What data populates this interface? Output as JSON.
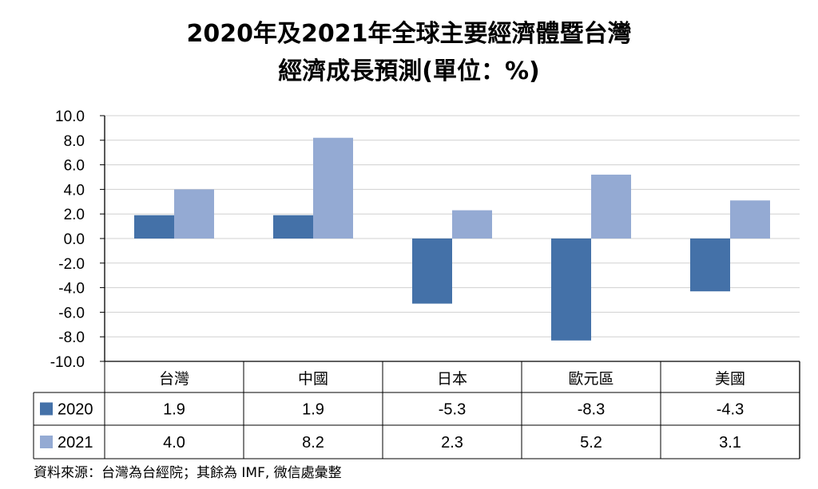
{
  "chart_data": {
    "type": "bar",
    "title_lines": [
      "2020年及2021年全球主要經濟體暨台灣",
      "經濟成長預測(單位：%)"
    ],
    "categories": [
      "台灣",
      "中國",
      "日本",
      "歐元區",
      "美國"
    ],
    "series": [
      {
        "name": "2020",
        "values": [
          1.9,
          1.9,
          -5.3,
          -8.3,
          -4.3
        ],
        "color": "#4471a8",
        "display": [
          "1.9",
          "1.9",
          "-5.3",
          "-8.3",
          "-4.3"
        ]
      },
      {
        "name": "2021",
        "values": [
          4.0,
          8.2,
          2.3,
          5.2,
          3.1
        ],
        "color": "#94aad3",
        "display": [
          "4.0",
          "8.2",
          "2.3",
          "5.2",
          "3.1"
        ]
      }
    ],
    "ylim": [
      -10,
      10
    ],
    "yticks": [
      10,
      8,
      6,
      4,
      2,
      0,
      -2,
      -4,
      -6,
      -8,
      -10
    ],
    "ytick_labels": [
      "10.0",
      "8.0",
      "6.0",
      "4.0",
      "2.0",
      "0.0",
      "-2.0",
      "-4.0",
      "-6.0",
      "-8.0",
      "-10.0"
    ],
    "grid": true,
    "legend": "data-table",
    "source": "資料來源：台灣為台經院；其餘為 IMF, 微信處彙整"
  }
}
